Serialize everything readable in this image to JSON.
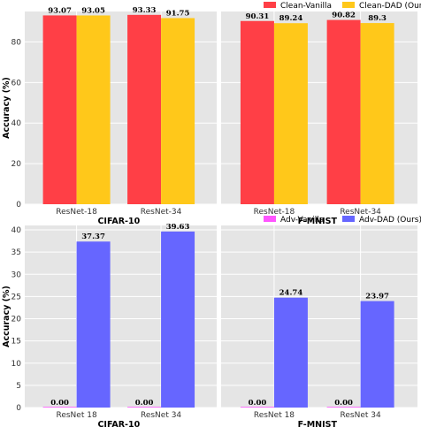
{
  "chart_data": [
    {
      "type": "bar",
      "title": "CIFAR-10",
      "ylabel": "Accuracy (%)",
      "categories": [
        "ResNet-18",
        "ResNet-34"
      ],
      "ylim": [
        0,
        95
      ],
      "yticks": [
        0,
        20,
        40,
        60,
        80
      ],
      "grid": true,
      "series": [
        {
          "name": "Clean-Vanilla",
          "values": [
            93.07,
            93.33
          ],
          "labels": [
            "93.07",
            "93.33"
          ],
          "color": "#ff3f46"
        },
        {
          "name": "Clean-DAD (Ours)",
          "values": [
            93.05,
            91.75
          ],
          "labels": [
            "93.05",
            "91.75"
          ],
          "color": "#ffc81a"
        }
      ]
    },
    {
      "type": "bar",
      "title": "F-MNIST",
      "ylabel": "",
      "categories": [
        "ResNet-18",
        "ResNet-34"
      ],
      "ylim": [
        0,
        95
      ],
      "yticks": [],
      "grid": true,
      "legend": "top-right",
      "series": [
        {
          "name": "Clean-Vanilla",
          "values": [
            90.31,
            90.82
          ],
          "labels": [
            "90.31",
            "90.82"
          ],
          "color": "#ff3f46"
        },
        {
          "name": "Clean-DAD (Ours)",
          "values": [
            89.24,
            89.3
          ],
          "labels": [
            "89.24",
            "89.3"
          ],
          "color": "#ffc81a"
        }
      ]
    },
    {
      "type": "bar",
      "title": "CIFAR-10",
      "ylabel": "Accuracy (%)",
      "categories": [
        "ResNet 18",
        "ResNet 34"
      ],
      "ylim": [
        0,
        41
      ],
      "yticks": [
        0,
        5,
        10,
        15,
        20,
        25,
        30,
        35,
        40
      ],
      "grid": true,
      "series": [
        {
          "name": "Adv-Vanilla",
          "values": [
            0.0,
            0.0
          ],
          "labels": [
            "0.00",
            "0.00"
          ],
          "color": "#ff55ff"
        },
        {
          "name": "Adv-DAD (Ours)",
          "values": [
            37.37,
            39.63
          ],
          "labels": [
            "37.37",
            "39.63"
          ],
          "color": "#6666ff"
        }
      ]
    },
    {
      "type": "bar",
      "title": "F-MNIST",
      "ylabel": "",
      "categories": [
        "ResNet 18",
        "ResNet 34"
      ],
      "ylim": [
        0,
        41
      ],
      "yticks": [],
      "grid": true,
      "legend": "top-right",
      "series": [
        {
          "name": "Adv-Vanilla",
          "values": [
            0.0,
            0.0
          ],
          "labels": [
            "0.00",
            "0.00"
          ],
          "color": "#ff55ff"
        },
        {
          "name": "Adv-DAD (Ours)",
          "values": [
            24.74,
            23.97
          ],
          "labels": [
            "24.74",
            "23.97"
          ],
          "color": "#6666ff"
        }
      ]
    }
  ]
}
